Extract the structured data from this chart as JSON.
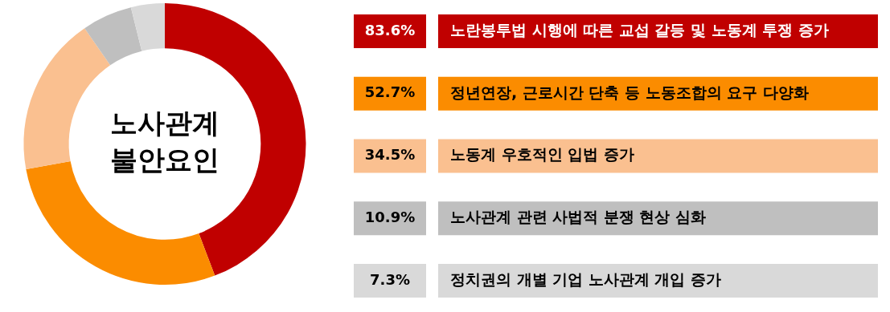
{
  "chart_data": {
    "type": "donut",
    "title": "노사관계 불안요인",
    "categories": [
      "노란봉투법 시행에 따른 교섭 갈등 및 노동계 투쟁 증가",
      "정년연장, 근로시간 단축 등 노동조합의 요구 다양화",
      "노동계 우호적인 입법 증가",
      "노사관계 관련 사법적 분쟁 현상 심화",
      "정치권의 개별 기업 노사관계 개입 증가"
    ],
    "values": [
      83.6,
      52.7,
      34.5,
      10.9,
      7.3
    ],
    "value_labels": [
      "83.6%",
      "52.7%",
      "34.5%",
      "10.9%",
      "7.3%"
    ],
    "colors": [
      "#c00000",
      "#fb8c00",
      "#fac090",
      "#bfbfbf",
      "#d9d9d9"
    ],
    "legend": "right"
  }
}
